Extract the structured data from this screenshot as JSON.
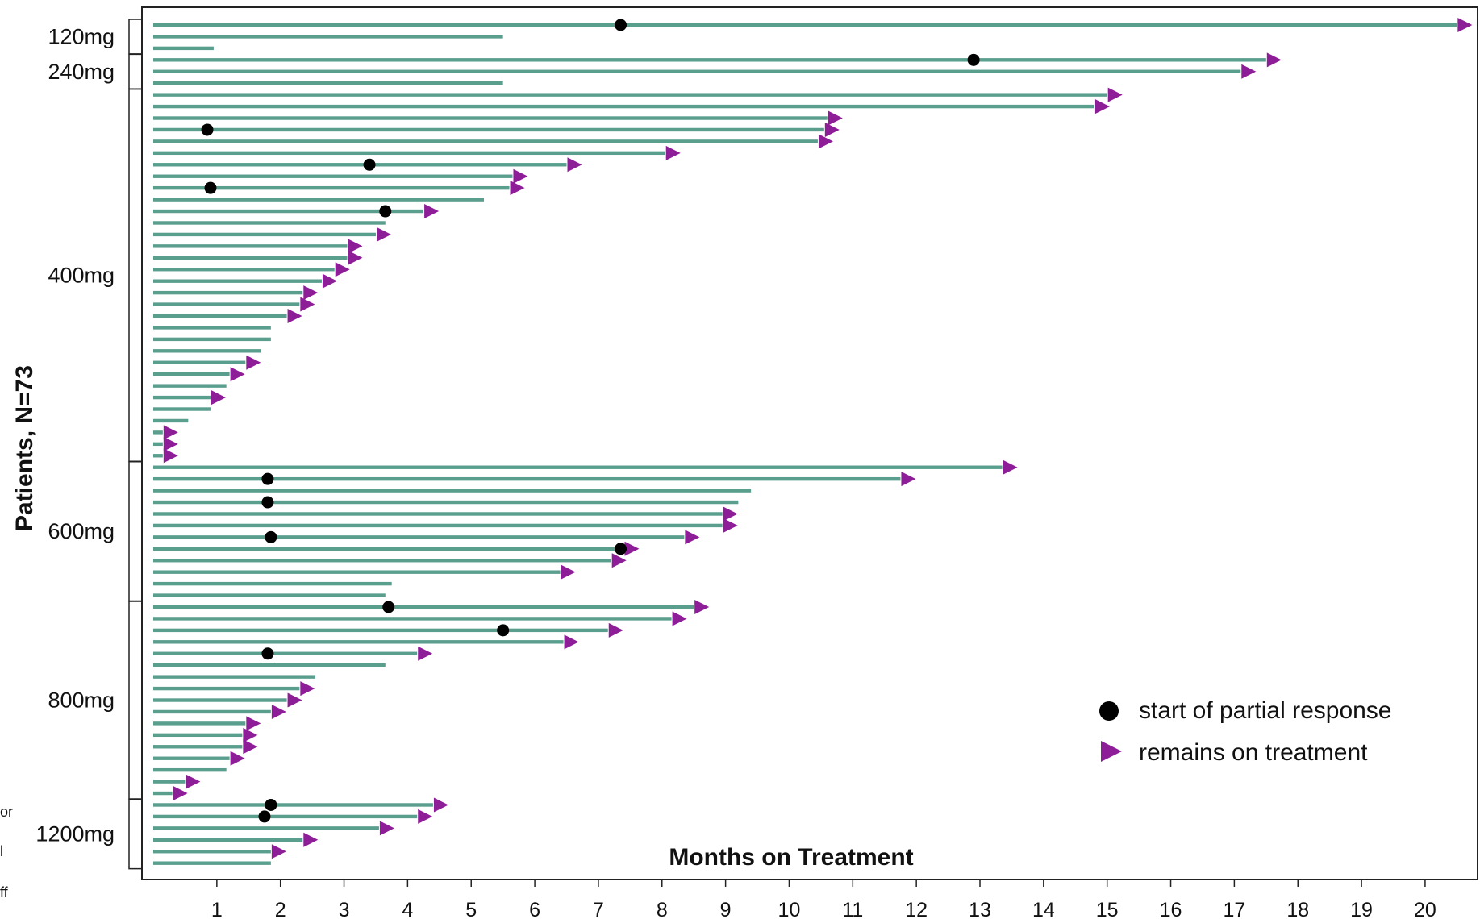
{
  "colors": {
    "bar": "#5a9e8e",
    "response": "#000000",
    "ongoing": "#8e1e97"
  },
  "left_fragments": [
    "or",
    "l",
    "ff"
  ],
  "chart_data": {
    "type": "swimmer",
    "xlabel": "Months on Treatment",
    "ylabel": "Patients, N=73",
    "xlim": [
      0,
      20.8
    ],
    "xticks": [
      1,
      2,
      3,
      4,
      5,
      6,
      7,
      8,
      9,
      10,
      11,
      12,
      13,
      14,
      15,
      16,
      17,
      18,
      19,
      20
    ],
    "legend": {
      "placement": "bottom-right",
      "items": [
        {
          "label": "start of partial response",
          "marker": "circle"
        },
        {
          "label": "remains on treatment",
          "marker": "triangle"
        }
      ]
    },
    "groups": [
      {
        "label": "120mg",
        "first": 1,
        "last": 3
      },
      {
        "label": "240mg",
        "first": 4,
        "last": 6
      },
      {
        "label": "400mg",
        "first": 7,
        "last": 38
      },
      {
        "label": "600mg",
        "first": 39,
        "last": 50
      },
      {
        "label": "800mg",
        "first": 51,
        "last": 67
      },
      {
        "label": "1200mg",
        "first": 68,
        "last": 73
      }
    ],
    "patients": [
      {
        "months": 20.5,
        "response": 7.35,
        "ongoing": true
      },
      {
        "months": 5.5,
        "response": null,
        "ongoing": false
      },
      {
        "months": 0.95,
        "response": null,
        "ongoing": false
      },
      {
        "months": 17.5,
        "response": 12.9,
        "ongoing": true
      },
      {
        "months": 17.1,
        "response": null,
        "ongoing": true
      },
      {
        "months": 5.5,
        "response": null,
        "ongoing": false
      },
      {
        "months": 15.0,
        "response": null,
        "ongoing": true
      },
      {
        "months": 14.8,
        "response": null,
        "ongoing": true
      },
      {
        "months": 10.6,
        "response": null,
        "ongoing": true
      },
      {
        "months": 10.55,
        "response": 0.85,
        "ongoing": true
      },
      {
        "months": 10.45,
        "response": null,
        "ongoing": true
      },
      {
        "months": 8.05,
        "response": null,
        "ongoing": true
      },
      {
        "months": 6.5,
        "response": 3.4,
        "ongoing": true
      },
      {
        "months": 5.65,
        "response": null,
        "ongoing": true
      },
      {
        "months": 5.6,
        "response": 0.9,
        "ongoing": true
      },
      {
        "months": 5.2,
        "response": null,
        "ongoing": false
      },
      {
        "months": 4.25,
        "response": 3.65,
        "ongoing": true
      },
      {
        "months": 3.65,
        "response": null,
        "ongoing": false
      },
      {
        "months": 3.5,
        "response": null,
        "ongoing": true
      },
      {
        "months": 3.05,
        "response": null,
        "ongoing": true
      },
      {
        "months": 3.05,
        "response": null,
        "ongoing": true
      },
      {
        "months": 2.85,
        "response": null,
        "ongoing": true
      },
      {
        "months": 2.65,
        "response": null,
        "ongoing": true
      },
      {
        "months": 2.35,
        "response": null,
        "ongoing": true
      },
      {
        "months": 2.3,
        "response": null,
        "ongoing": true
      },
      {
        "months": 2.1,
        "response": null,
        "ongoing": true
      },
      {
        "months": 1.85,
        "response": null,
        "ongoing": false
      },
      {
        "months": 1.85,
        "response": null,
        "ongoing": false
      },
      {
        "months": 1.7,
        "response": null,
        "ongoing": false
      },
      {
        "months": 1.45,
        "response": null,
        "ongoing": true
      },
      {
        "months": 1.2,
        "response": null,
        "ongoing": true
      },
      {
        "months": 1.15,
        "response": null,
        "ongoing": false
      },
      {
        "months": 0.9,
        "response": null,
        "ongoing": true
      },
      {
        "months": 0.9,
        "response": null,
        "ongoing": false
      },
      {
        "months": 0.55,
        "response": null,
        "ongoing": false
      },
      {
        "months": 0.15,
        "response": null,
        "ongoing": true
      },
      {
        "months": 0.15,
        "response": null,
        "ongoing": true
      },
      {
        "months": 0.15,
        "response": null,
        "ongoing": true
      },
      {
        "months": 13.35,
        "response": null,
        "ongoing": true
      },
      {
        "months": 11.75,
        "response": 1.8,
        "ongoing": true
      },
      {
        "months": 9.4,
        "response": null,
        "ongoing": false
      },
      {
        "months": 9.2,
        "response": 1.8,
        "ongoing": false
      },
      {
        "months": 8.95,
        "response": null,
        "ongoing": true
      },
      {
        "months": 8.95,
        "response": null,
        "ongoing": true
      },
      {
        "months": 8.35,
        "response": 1.85,
        "ongoing": true
      },
      {
        "months": 7.4,
        "response": 7.35,
        "ongoing": true
      },
      {
        "months": 7.2,
        "response": null,
        "ongoing": true
      },
      {
        "months": 6.4,
        "response": null,
        "ongoing": true
      },
      {
        "months": 3.75,
        "response": null,
        "ongoing": false
      },
      {
        "months": 3.65,
        "response": null,
        "ongoing": false
      },
      {
        "months": 8.5,
        "response": 3.7,
        "ongoing": true
      },
      {
        "months": 8.15,
        "response": null,
        "ongoing": true
      },
      {
        "months": 7.15,
        "response": 5.5,
        "ongoing": true
      },
      {
        "months": 6.45,
        "response": null,
        "ongoing": true
      },
      {
        "months": 4.15,
        "response": 1.8,
        "ongoing": true
      },
      {
        "months": 3.65,
        "response": null,
        "ongoing": false
      },
      {
        "months": 2.55,
        "response": null,
        "ongoing": false
      },
      {
        "months": 2.3,
        "response": null,
        "ongoing": true
      },
      {
        "months": 2.1,
        "response": null,
        "ongoing": true
      },
      {
        "months": 1.85,
        "response": null,
        "ongoing": true
      },
      {
        "months": 1.45,
        "response": null,
        "ongoing": true
      },
      {
        "months": 1.4,
        "response": null,
        "ongoing": true
      },
      {
        "months": 1.4,
        "response": null,
        "ongoing": true
      },
      {
        "months": 1.2,
        "response": null,
        "ongoing": true
      },
      {
        "months": 1.15,
        "response": null,
        "ongoing": false
      },
      {
        "months": 0.5,
        "response": null,
        "ongoing": true
      },
      {
        "months": 0.3,
        "response": null,
        "ongoing": true
      },
      {
        "months": 4.4,
        "response": 1.85,
        "ongoing": true
      },
      {
        "months": 4.15,
        "response": 1.75,
        "ongoing": true
      },
      {
        "months": 3.55,
        "response": null,
        "ongoing": true
      },
      {
        "months": 2.35,
        "response": null,
        "ongoing": true
      },
      {
        "months": 1.85,
        "response": null,
        "ongoing": true
      },
      {
        "months": 1.85,
        "response": null,
        "ongoing": false
      }
    ]
  }
}
